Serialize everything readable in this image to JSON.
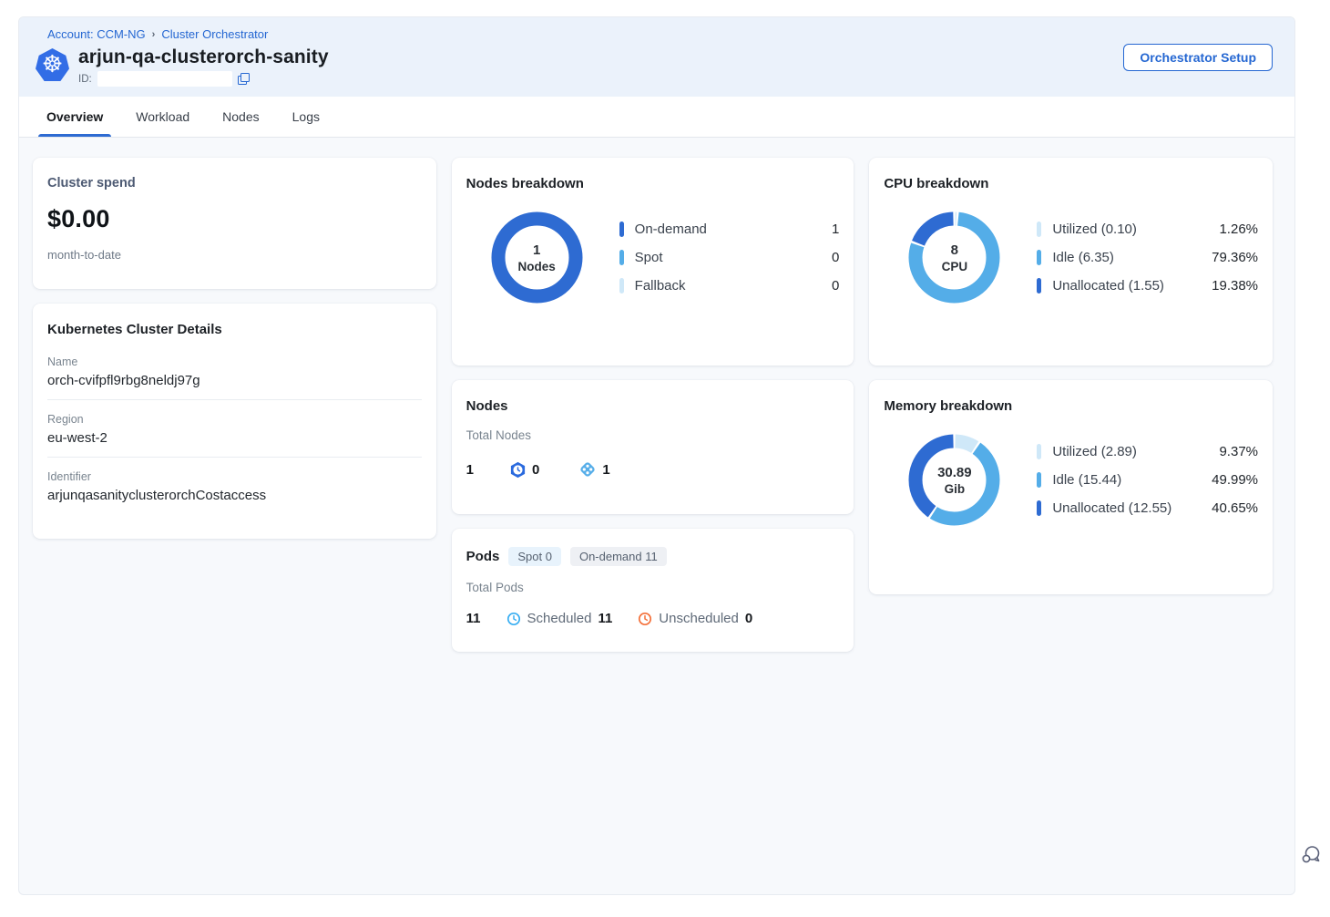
{
  "colors": {
    "accent_blue": "#2567d2",
    "donut_dark": "#2e6bd2",
    "donut_medium": "#54ade8",
    "donut_light": "#cfe8f8",
    "scheduled_blue": "#38aef2",
    "unscheduled_orange": "#f4703a"
  },
  "header": {
    "breadcrumb": [
      {
        "label": "Account: CCM-NG"
      },
      {
        "label": "Cluster Orchestrator"
      }
    ],
    "breadcrumb_separator": "›",
    "title": "arjun-qa-clusterorch-sanity",
    "id_label": "ID:",
    "id_value": "",
    "setup_button_label": "Orchestrator Setup"
  },
  "tabs": [
    {
      "label": "Overview",
      "active": true
    },
    {
      "label": "Workload",
      "active": false
    },
    {
      "label": "Nodes",
      "active": false
    },
    {
      "label": "Logs",
      "active": false
    }
  ],
  "cluster_spend": {
    "title": "Cluster spend",
    "amount": "$0.00",
    "period": "month-to-date"
  },
  "cluster_details": {
    "title": "Kubernetes Cluster Details",
    "fields": [
      {
        "label": "Name",
        "value": "orch-cvifpfl9rbg8neldj97g"
      },
      {
        "label": "Region",
        "value": "eu-west-2"
      },
      {
        "label": "Identifier",
        "value": "arjunqasanityclusterorchCostaccess"
      }
    ]
  },
  "nodes_card": {
    "title": "Nodes",
    "subtitle": "Total Nodes",
    "total": "1",
    "spot_count": "0",
    "on_demand_count": "1"
  },
  "pods_card": {
    "title": "Pods",
    "chips": [
      {
        "label": "Spot 0",
        "kind": "spot"
      },
      {
        "label": "On-demand 11",
        "kind": "ondemand"
      }
    ],
    "subtitle": "Total Pods",
    "total": "11",
    "scheduled_label": "Scheduled",
    "scheduled_count": "11",
    "unscheduled_label": "Unscheduled",
    "unscheduled_count": "0"
  },
  "chart_data": [
    {
      "id": "nodes",
      "type": "donut",
      "title": "Nodes breakdown",
      "center_value": "1",
      "center_label": "Nodes",
      "legend_position": "right",
      "segments": [
        {
          "label": "On-demand",
          "display_value": "1",
          "pct": 100,
          "color": "#2e6bd2"
        },
        {
          "label": "Spot",
          "display_value": "0",
          "pct": 0,
          "color": "#54ade8"
        },
        {
          "label": "Fallback",
          "display_value": "0",
          "pct": 0,
          "color": "#cfe8f8"
        }
      ]
    },
    {
      "id": "cpu",
      "type": "donut",
      "title": "CPU breakdown",
      "center_value": "8",
      "center_label": "CPU",
      "legend_position": "right",
      "segments": [
        {
          "label": "Utilized (0.10)",
          "display_value": "1.26%",
          "pct": 1.26,
          "color": "#cfe8f8"
        },
        {
          "label": "Idle (6.35)",
          "display_value": "79.36%",
          "pct": 79.36,
          "color": "#54ade8"
        },
        {
          "label": "Unallocated (1.55)",
          "display_value": "19.38%",
          "pct": 19.38,
          "color": "#2e6bd2"
        }
      ]
    },
    {
      "id": "memory",
      "type": "donut",
      "title": "Memory breakdown",
      "center_value": "30.89",
      "center_label": "Gib",
      "legend_position": "right",
      "segments": [
        {
          "label": "Utilized (2.89)",
          "display_value": "9.37%",
          "pct": 9.37,
          "color": "#cfe8f8"
        },
        {
          "label": "Idle (15.44)",
          "display_value": "49.99%",
          "pct": 49.99,
          "color": "#54ade8"
        },
        {
          "label": "Unallocated (12.55)",
          "display_value": "40.65%",
          "pct": 40.65,
          "color": "#2e6bd2"
        }
      ]
    }
  ]
}
